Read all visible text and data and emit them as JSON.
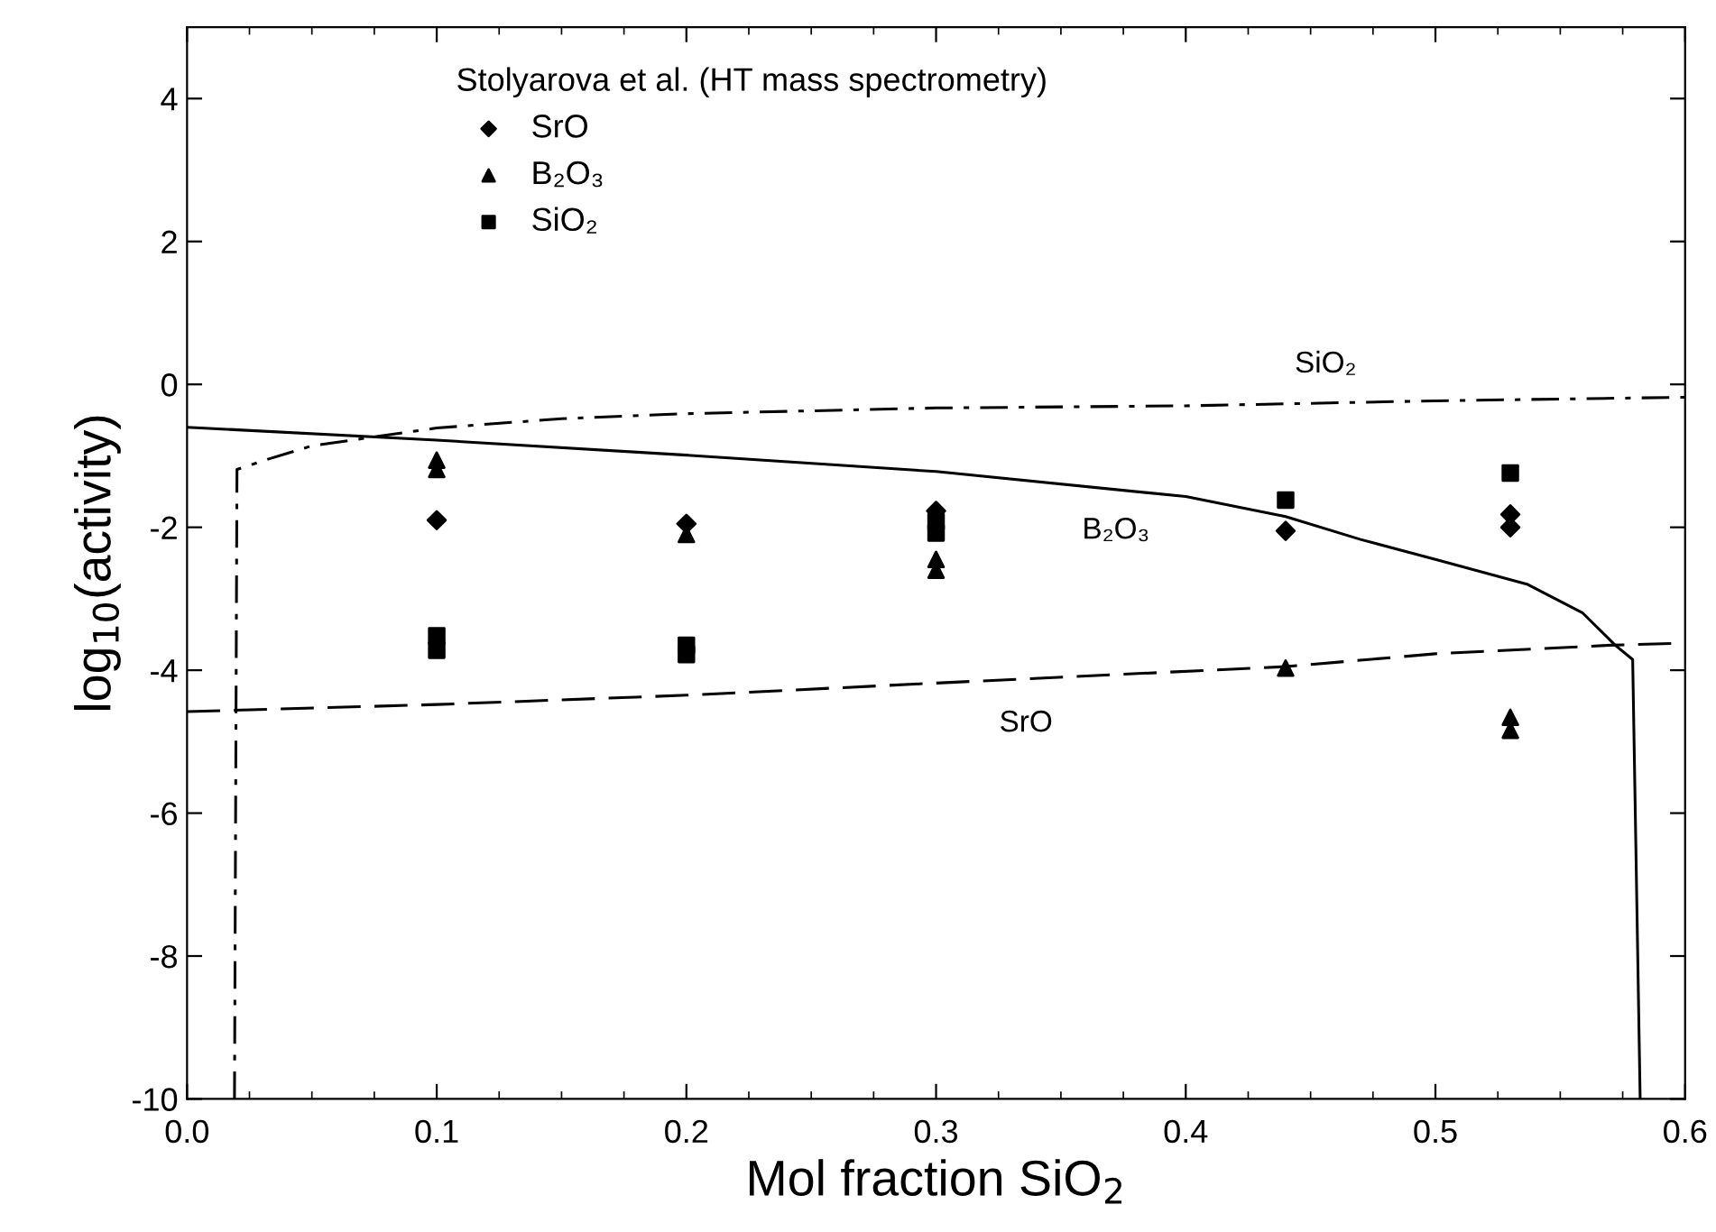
{
  "chart_data": {
    "type": "scatter",
    "xlabel": "Mol fraction SiO$_{2}$",
    "ylabel": "log$_{10}$(activity)",
    "legend_title": "Stolyarova et al. (HT mass spectrometry)",
    "legend": "top left",
    "xlim": [
      0.0,
      0.6
    ],
    "xticks": [
      {
        "value": 0.0,
        "label": "0.0"
      },
      0.1,
      0.2,
      0.3,
      0.4,
      0.5,
      0.6
    ],
    "ylim": [
      -10,
      5
    ],
    "yticks": [
      -10,
      -8,
      -6,
      -4,
      -2,
      0,
      2,
      4
    ],
    "grid": false,
    "series": [
      {
        "name": "SrO",
        "marker": "diamond",
        "color": "#000000",
        "x": [
          0.1,
          0.2,
          0.3,
          0.44,
          0.53,
          0.53
        ],
        "values": [
          -1.9,
          -1.95,
          -1.77,
          -2.05,
          -1.82,
          -2.0
        ]
      },
      {
        "name": "B₂O₃",
        "marker": "triangle",
        "color": "#000000",
        "x": [
          0.1,
          0.1,
          0.2,
          0.3,
          0.3,
          0.44,
          0.53,
          0.53
        ],
        "values": [
          -1.06,
          -1.19,
          -2.1,
          -2.45,
          -2.6,
          -3.97,
          -4.66,
          -4.84
        ]
      },
      {
        "name": "SiO₂",
        "marker": "square",
        "color": "#000000",
        "x": [
          0.1,
          0.1,
          0.2,
          0.2,
          0.3,
          0.3,
          0.44,
          0.53
        ],
        "values": [
          -3.52,
          -3.72,
          -3.65,
          -3.78,
          -1.92,
          -2.08,
          -1.62,
          -1.24
        ]
      },
      {
        "name": "B₂O₃",
        "type": "line",
        "line_style": "solid",
        "color": "#000000",
        "x": [
          0.0,
          0.1,
          0.2,
          0.3,
          0.4,
          0.44,
          0.47,
          0.5,
          0.537,
          0.559,
          0.572,
          0.579,
          0.582
        ],
        "values": [
          -0.6,
          -0.78,
          -0.99,
          -1.22,
          -1.57,
          -1.85,
          -2.17,
          -2.45,
          -2.8,
          -3.2,
          -3.65,
          -3.85,
          -10
        ]
      },
      {
        "name": "SrO",
        "type": "line",
        "line_style": "dashed",
        "color": "#000000",
        "x": [
          0.0,
          0.1,
          0.2,
          0.3,
          0.44,
          0.5,
          0.57,
          0.6
        ],
        "values": [
          -4.58,
          -4.48,
          -4.35,
          -4.18,
          -3.95,
          -3.77,
          -3.65,
          -3.62
        ]
      },
      {
        "name": "SiO₂",
        "type": "line",
        "line_style": "dashdot",
        "color": "#000000",
        "x": [
          0.019,
          0.02,
          0.033,
          0.05,
          0.1,
          0.15,
          0.2,
          0.3,
          0.4,
          0.5,
          0.6
        ],
        "values": [
          -10,
          -1.19,
          -1.04,
          -0.86,
          -0.61,
          -0.48,
          -0.41,
          -0.33,
          -0.3,
          -0.23,
          -0.18
        ]
      }
    ]
  }
}
